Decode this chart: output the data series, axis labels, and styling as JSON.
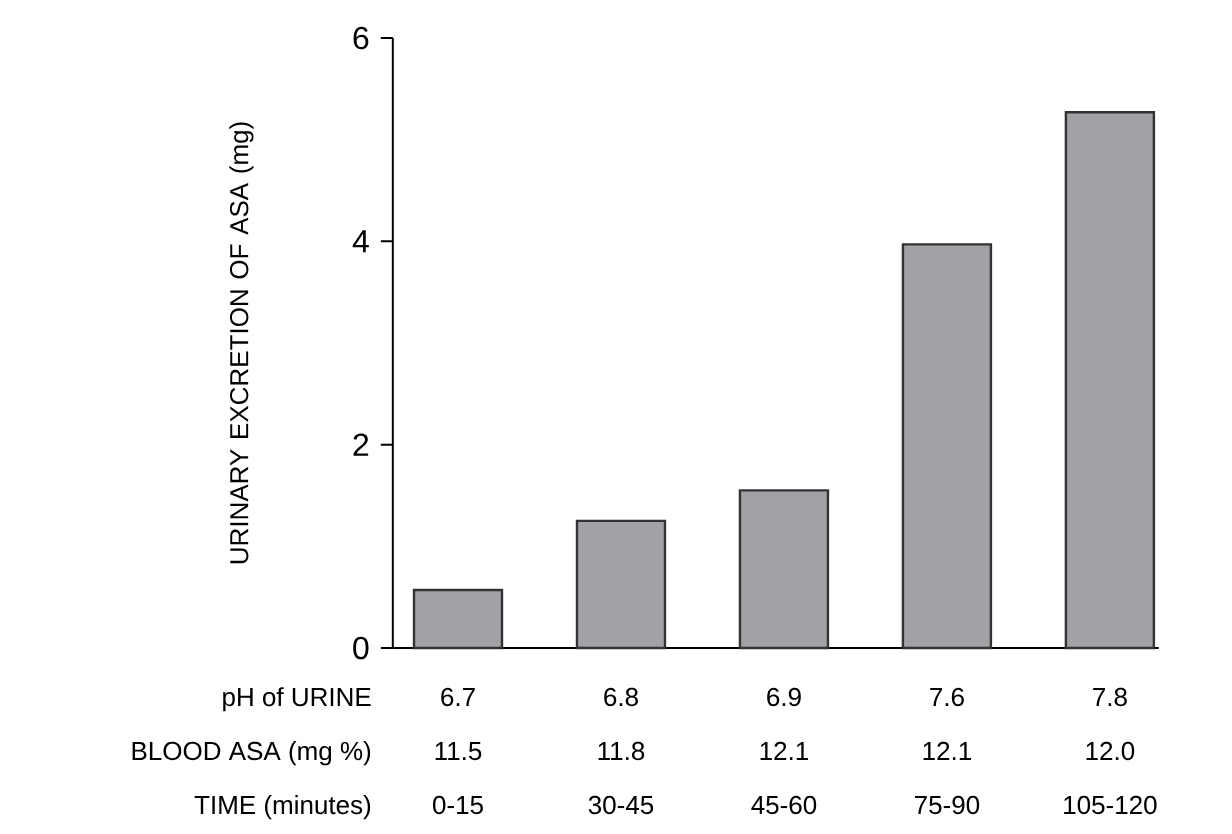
{
  "chart_data": {
    "type": "bar",
    "ylabel": "URINARY EXCRETION OF ASA (mg)",
    "categories": [
      "0-15",
      "30-45",
      "45-60",
      "75-90",
      "105-120"
    ],
    "values": [
      0.57,
      1.25,
      1.55,
      3.97,
      5.27
    ],
    "color": "#a2a2a6",
    "ylim": [
      0,
      6
    ],
    "yticks": [
      0,
      2,
      4,
      6
    ],
    "annotations": [
      "pH of URINE",
      "6.7",
      "6.8",
      "6.9",
      "7.6",
      "7.8",
      "BLOOD ASA (mg %)",
      "11.5",
      "11.8",
      "12.1",
      "12.1",
      "12.0",
      "TIME (minutes)"
    ]
  }
}
